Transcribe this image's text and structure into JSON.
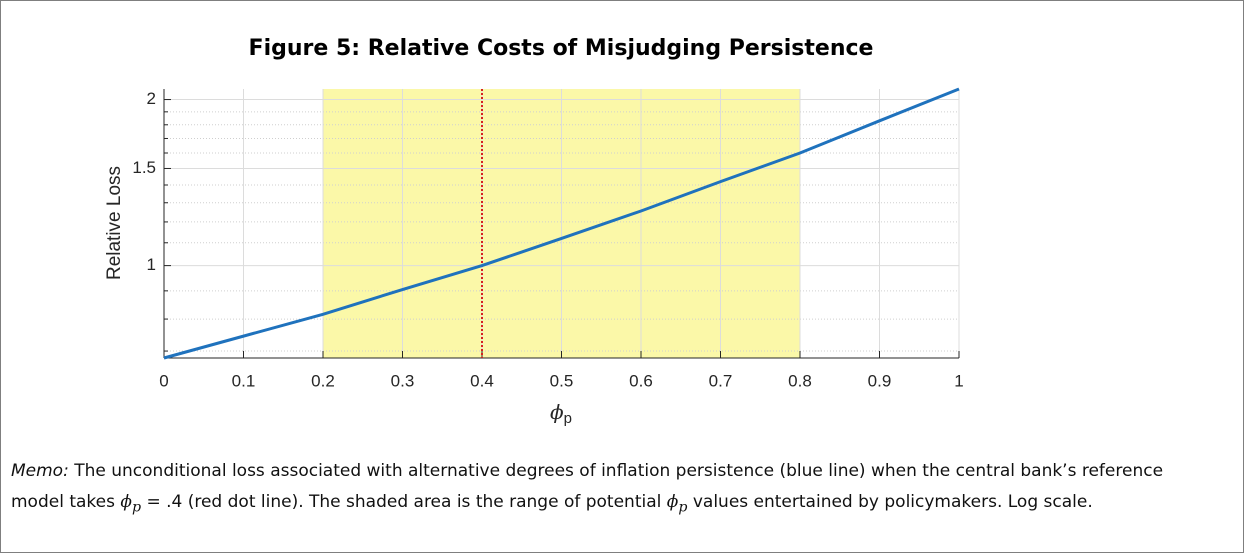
{
  "chart_data": {
    "type": "line",
    "title": "Figure 5: Relative Costs of Misjudging Persistence",
    "y_label": "Relative Loss",
    "x_label": {
      "symbol": "ϕ",
      "subscript": "p"
    },
    "log_y": true,
    "grid": true,
    "xlim": [
      0,
      1
    ],
    "xticks": [
      0,
      0.1,
      0.2,
      0.3,
      0.4,
      0.5,
      0.6,
      0.7,
      0.8,
      0.9,
      1
    ],
    "ylim": [
      0.68,
      2.09
    ],
    "yticks": [
      1,
      1.5,
      2
    ],
    "yminorticks": [
      0.7,
      0.8,
      0.9,
      1.1,
      1.2,
      1.3,
      1.4,
      1.6,
      1.7,
      1.8,
      1.9
    ],
    "shaded_range": [
      0.2,
      0.8
    ],
    "shade_color": "#fbf8a8",
    "reference_x": 0.4,
    "reference_color": "#d62020",
    "series": [
      {
        "color": "#1f72bd",
        "x": [
          0,
          0.1,
          0.2,
          0.3,
          0.4,
          0.5,
          0.6,
          0.7,
          0.8,
          0.9,
          1
        ],
        "values": [
          0.68,
          0.745,
          0.816,
          0.905,
          1.0,
          1.12,
          1.256,
          1.42,
          1.6,
          1.83,
          2.09
        ]
      }
    ]
  },
  "memo": {
    "lead": "Memo:",
    "parts": [
      "The unconditional loss associated with alternative degrees of inflation persistence (blue line) when the central bank’s reference model takes ",
      "ϕ",
      "p",
      " = .4 (red dot line). The shaded area is the range of potential ",
      "ϕ",
      "p",
      " values entertained by policymakers. Log scale."
    ]
  }
}
